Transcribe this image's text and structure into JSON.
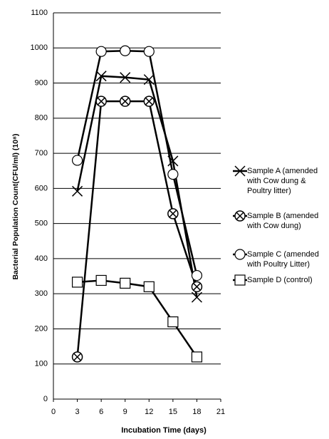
{
  "chart_data": {
    "type": "line",
    "x_label": "Incubation Time (days)",
    "y_label": "Bacterial Population Count(CFU/ml) (10⁸)",
    "x": [
      3,
      6,
      9,
      12,
      15,
      18
    ],
    "series": [
      {
        "name": "Sample A (amended with Cow dung & Poultry litter)",
        "color": "#000000",
        "marker": "x",
        "values": [
          592,
          920,
          916,
          910,
          678,
          290
        ]
      },
      {
        "name": "Sample B (amended with Cow dung)",
        "color": "#000000",
        "marker": "circle-x",
        "values": [
          120,
          848,
          848,
          848,
          528,
          320
        ]
      },
      {
        "name": "Sample C (amended with Poultry Litter)",
        "color": "#000000",
        "marker": "circle",
        "values": [
          680,
          990,
          992,
          990,
          640,
          352
        ]
      },
      {
        "name": "Sample D (control)",
        "color": "#000000",
        "marker": "square",
        "values": [
          333,
          338,
          330,
          320,
          220,
          120
        ]
      }
    ],
    "xlim": [
      0,
      21
    ],
    "xticks": [
      0,
      3,
      6,
      9,
      12,
      15,
      18,
      21
    ],
    "ylim": [
      0,
      1100
    ],
    "yticks": [
      0,
      100,
      200,
      300,
      400,
      500,
      600,
      700,
      800,
      900,
      1000,
      1100
    ],
    "grid": true,
    "legend": "right"
  }
}
